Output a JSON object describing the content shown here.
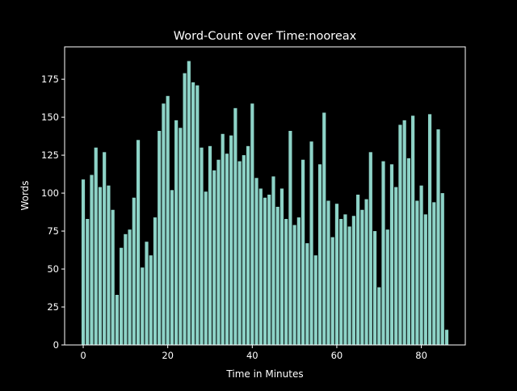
{
  "chart_data": {
    "type": "bar",
    "title": "Word-Count over Time:nooreax",
    "xlabel": "Time in Minutes",
    "ylabel": "Words",
    "xlim": [
      -4.4,
      90.4
    ],
    "ylim": [
      0,
      196.35
    ],
    "xticks": [
      0,
      20,
      40,
      60,
      80
    ],
    "yticks": [
      0,
      25,
      50,
      75,
      100,
      125,
      150,
      175
    ],
    "grid": false,
    "bar_color": "#8dd3c7",
    "background": "#000000",
    "foreground": "#ffffff",
    "x": [
      0,
      1,
      2,
      3,
      4,
      5,
      6,
      7,
      8,
      9,
      10,
      11,
      12,
      13,
      14,
      15,
      16,
      17,
      18,
      19,
      20,
      21,
      22,
      23,
      24,
      25,
      26,
      27,
      28,
      29,
      30,
      31,
      32,
      33,
      34,
      35,
      36,
      37,
      38,
      39,
      40,
      41,
      42,
      43,
      44,
      45,
      46,
      47,
      48,
      49,
      50,
      51,
      52,
      53,
      54,
      55,
      56,
      57,
      58,
      59,
      60,
      61,
      62,
      63,
      64,
      65,
      66,
      67,
      68,
      69,
      70,
      71,
      72,
      73,
      74,
      75,
      76,
      77,
      78,
      79,
      80,
      81,
      82,
      83,
      84,
      85,
      86
    ],
    "values": [
      109,
      83,
      112,
      130,
      104,
      127,
      105,
      89,
      33,
      64,
      73,
      76,
      97,
      135,
      51,
      68,
      59,
      84,
      141,
      159,
      164,
      102,
      148,
      143,
      179,
      187,
      173,
      171,
      130,
      101,
      131,
      115,
      122,
      139,
      126,
      138,
      156,
      121,
      125,
      131,
      159,
      110,
      103,
      97,
      99,
      111,
      91,
      103,
      83,
      141,
      79,
      84,
      122,
      67,
      134,
      59,
      119,
      153,
      95,
      71,
      93,
      83,
      86,
      78,
      85,
      99,
      89,
      96,
      127,
      75,
      38,
      121,
      76,
      119,
      104,
      145,
      148,
      123,
      151,
      95,
      105,
      86,
      152,
      94,
      142,
      100,
      10
    ]
  }
}
